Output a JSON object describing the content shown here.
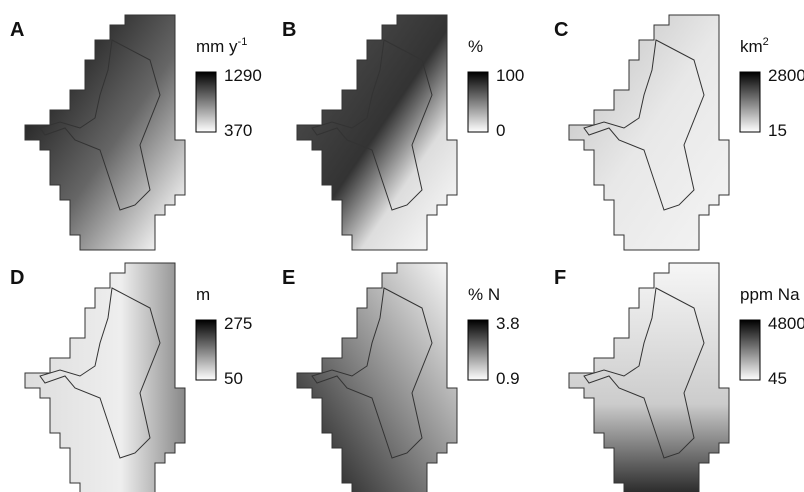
{
  "panels": [
    {
      "label": "A",
      "unit": "mm y",
      "unit_sup": "-1",
      "max": 1290,
      "min": 370
    },
    {
      "label": "B",
      "unit": "%",
      "max": 100,
      "min": 0
    },
    {
      "label": "C",
      "unit": "km",
      "unit_sup": "2",
      "max": 2800,
      "min": 15
    },
    {
      "label": "D",
      "unit": "m",
      "max": 275,
      "min": 50
    },
    {
      "label": "E",
      "unit": "% N",
      "max": 3.8,
      "min": 0.9
    },
    {
      "label": "F",
      "unit": "ppm Na",
      "max": 4800,
      "min": 45
    }
  ]
}
